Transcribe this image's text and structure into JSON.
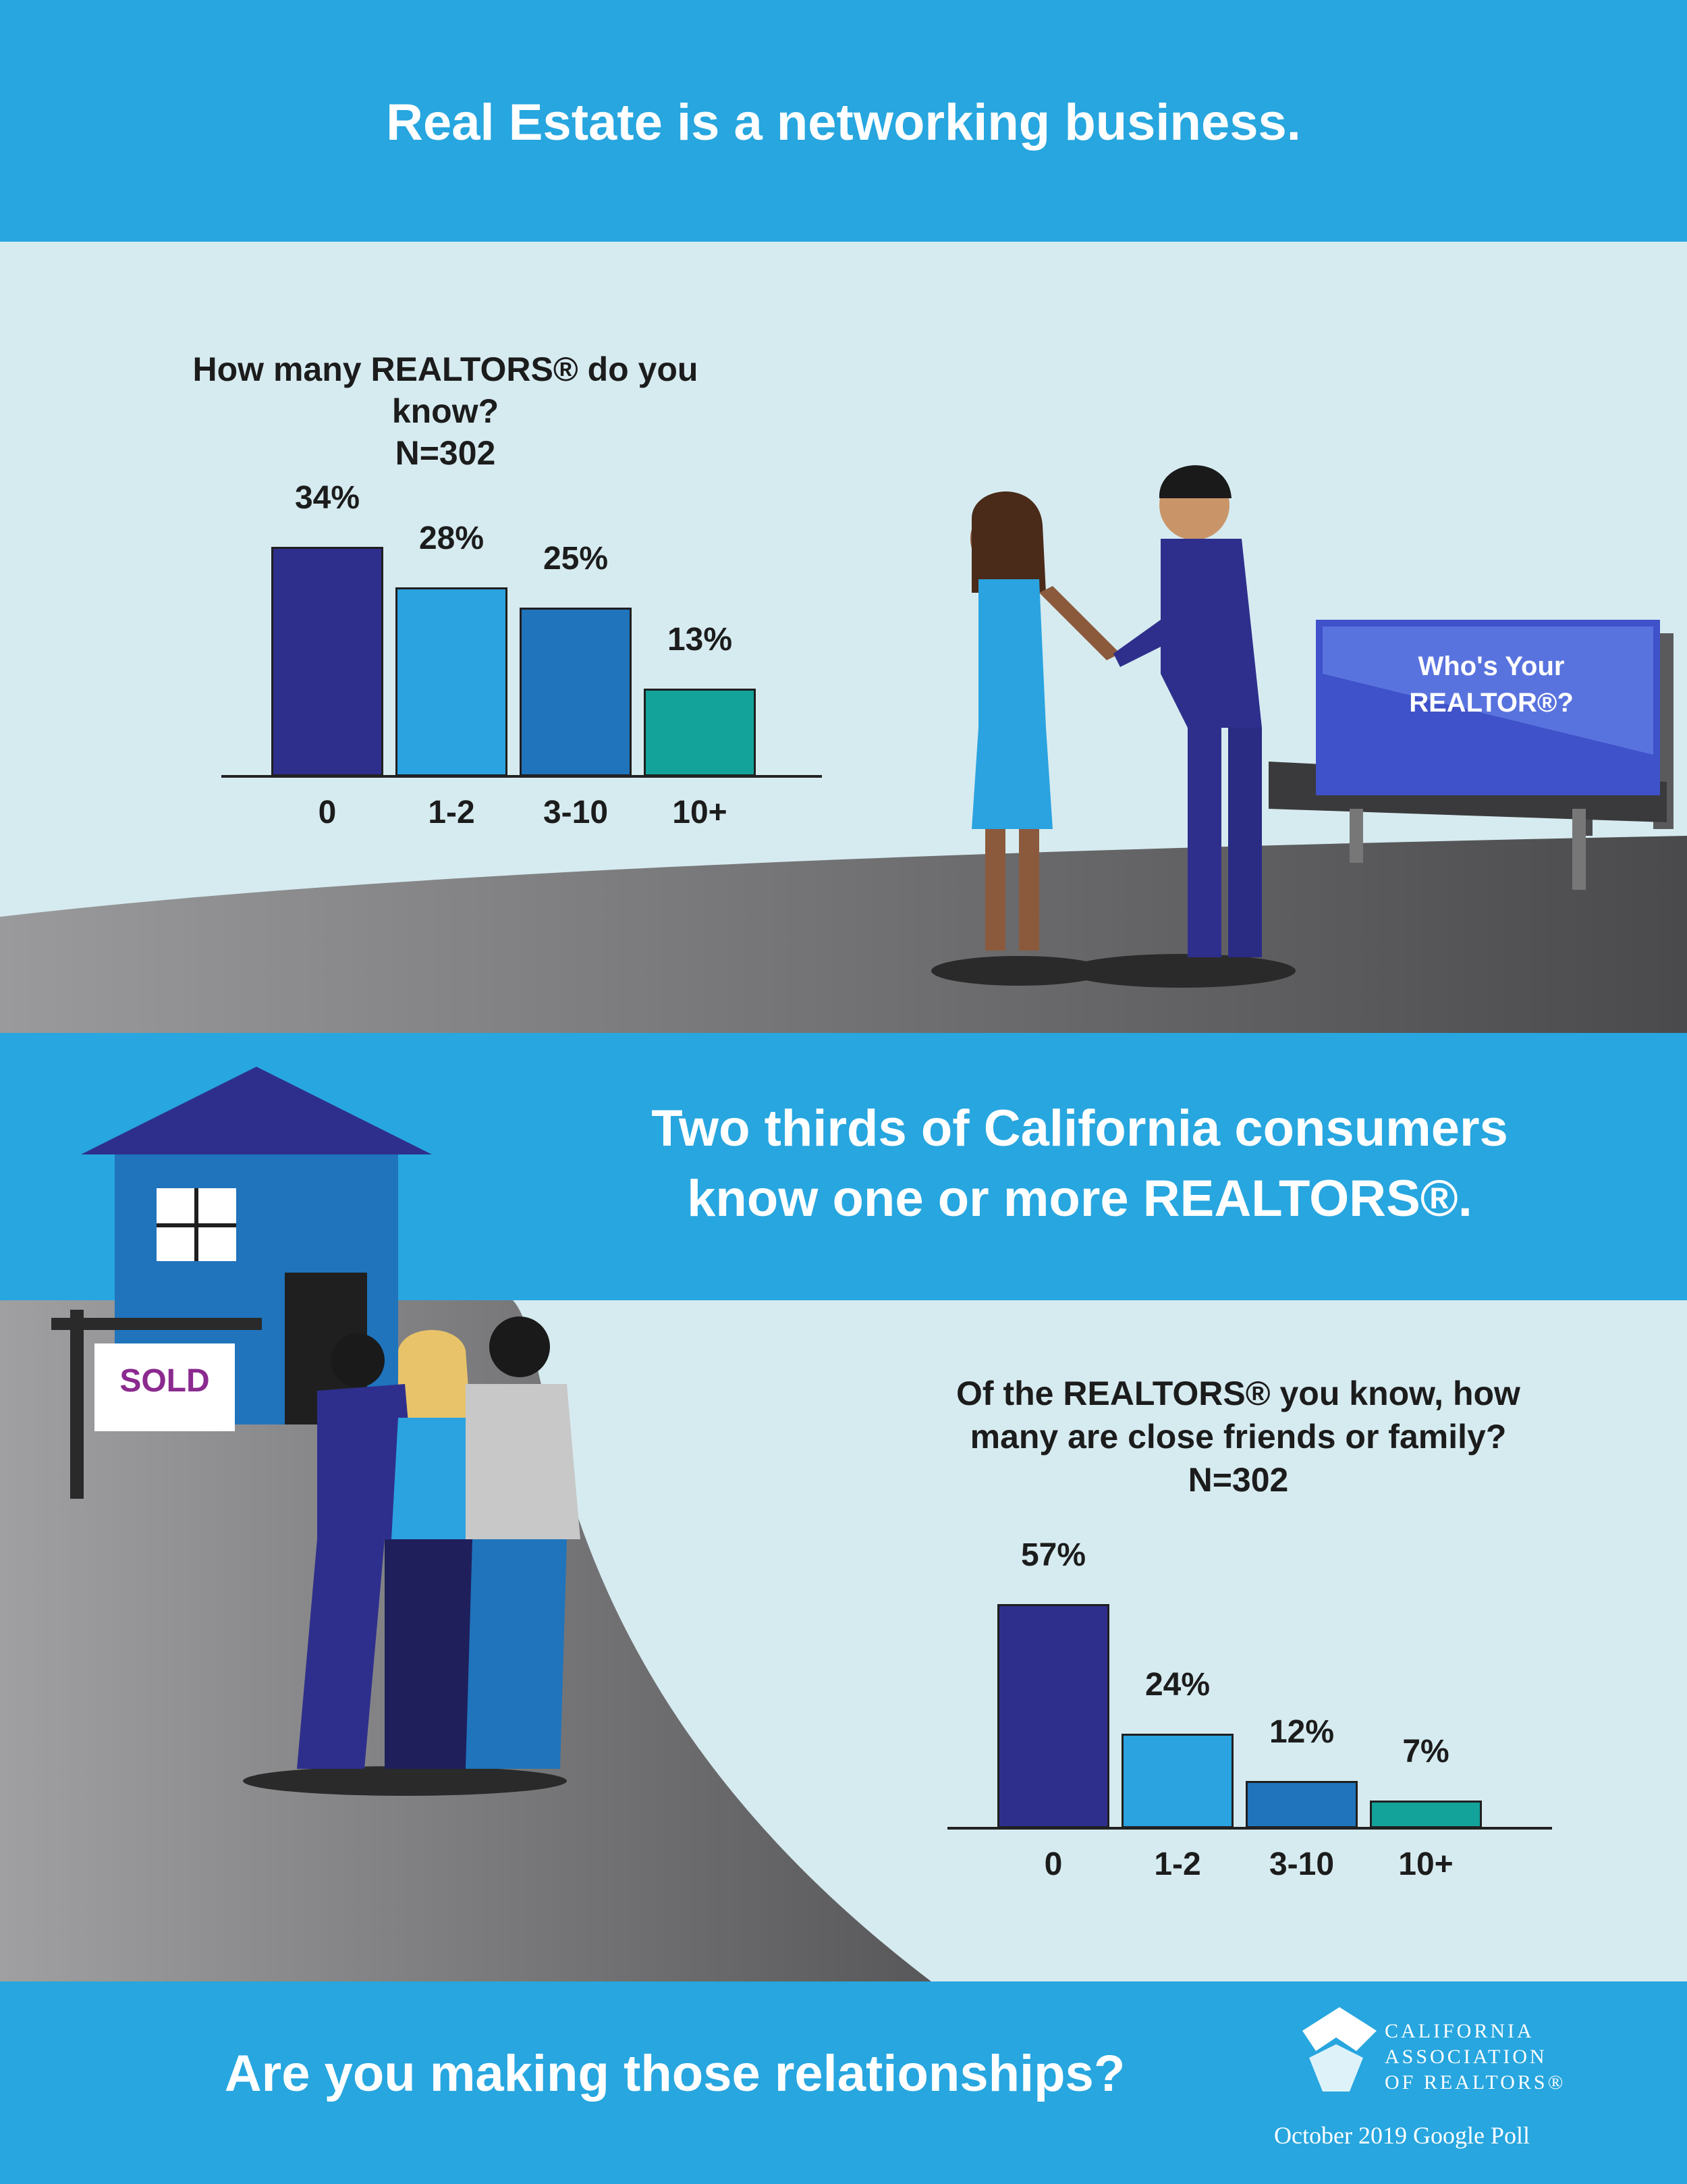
{
  "header": {
    "title": "Real Estate is a networking business."
  },
  "middle": {
    "line1": "Two thirds of California consumers",
    "line2": "know one or more REALTORS®."
  },
  "footer": {
    "cta": "Are you making those relationships?",
    "poll_note": "October 2019 Google Poll",
    "logo_line1": "CALIFORNIA",
    "logo_line2": "ASSOCIATION",
    "logo_line3": "OF REALTORS®"
  },
  "billboard": {
    "line1": "Who's Your",
    "line2": "REALTOR®?"
  },
  "sign": {
    "text": "SOLD"
  },
  "colors": {
    "banner": "#27a6df",
    "bar_0": "#2e2f8c",
    "bar_1": "#2aa3e0",
    "bar_2": "#1f74bc",
    "bar_3": "#13a39a"
  },
  "chart_data": [
    {
      "type": "bar",
      "title": "How many REALTORS® do you know?",
      "subtitle": "N=302",
      "categories": [
        "0",
        "1-2",
        "3-10",
        "10+"
      ],
      "values": [
        34,
        28,
        25,
        13
      ],
      "value_labels": [
        "34%",
        "28%",
        "25%",
        "13%"
      ],
      "ylim": [
        0,
        40
      ]
    },
    {
      "type": "bar",
      "title_line1": "Of the REALTORS® you know, how",
      "title_line2": "many are close friends or family?",
      "subtitle": "N=302",
      "categories": [
        "0",
        "1-2",
        "3-10",
        "10+"
      ],
      "values": [
        57,
        24,
        12,
        7
      ],
      "value_labels": [
        "57%",
        "24%",
        "12%",
        "7%"
      ],
      "ylim": [
        0,
        60
      ]
    }
  ]
}
